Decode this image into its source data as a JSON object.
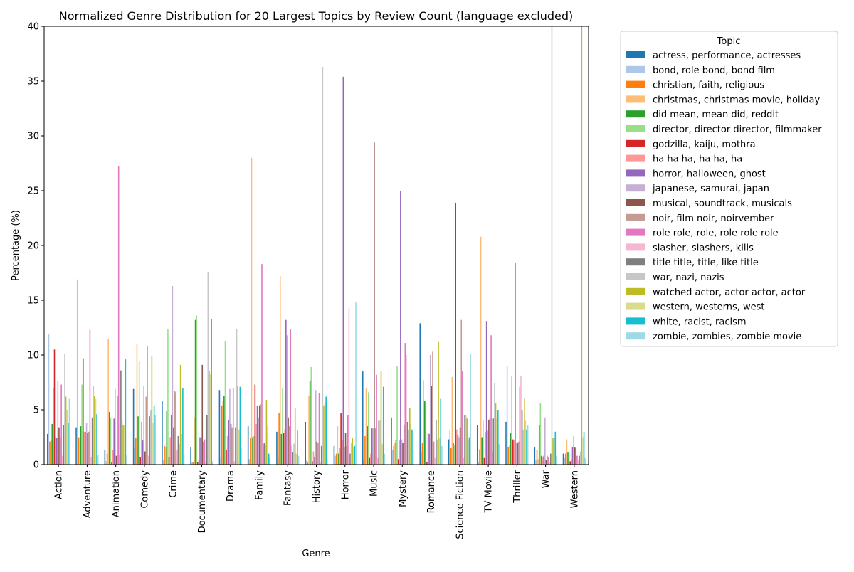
{
  "chart_data": {
    "type": "bar",
    "title": "Normalized Genre Distribution for 20 Largest Topics by Review Count (language excluded)",
    "xlabel": "Genre",
    "ylabel": "Percentage (%)",
    "ylim": [
      0,
      40
    ],
    "yticks": [
      0,
      5,
      10,
      15,
      20,
      25,
      30,
      35,
      40
    ],
    "grid": false,
    "legend": {
      "title": "Topic",
      "placement": "outside-right"
    },
    "categories": [
      "Action",
      "Adventure",
      "Animation",
      "Comedy",
      "Crime",
      "Documentary",
      "Drama",
      "Family",
      "Fantasy",
      "History",
      "Horror",
      "Music",
      "Mystery",
      "Romance",
      "Science Fiction",
      "TV Movie",
      "Thriller",
      "War",
      "Western"
    ],
    "series": [
      {
        "name": "actress, performance, actresses",
        "color": "#1f77b4",
        "values": [
          2.8,
          3.4,
          1.3,
          6.9,
          5.8,
          1.6,
          6.8,
          3.5,
          3.0,
          3.9,
          1.7,
          8.5,
          4.3,
          12.9,
          2.3,
          3.6,
          3.9,
          1.6,
          1.0
        ]
      },
      {
        "name": "bond, role bond, bond film",
        "color": "#aec7e8",
        "values": [
          11.9,
          16.9,
          0.3,
          1.5,
          0.4,
          0.2,
          0.6,
          0.5,
          0.6,
          0.4,
          0.8,
          0.4,
          1.3,
          1.2,
          3.1,
          0.2,
          9.0,
          0.4,
          0.6
        ]
      },
      {
        "name": "christian, faith, religious",
        "color": "#ff7f0e",
        "values": [
          2.1,
          2.5,
          1.0,
          2.4,
          1.7,
          0.2,
          5.4,
          2.4,
          4.7,
          0.2,
          1.0,
          2.6,
          1.7,
          2.0,
          1.5,
          1.4,
          1.6,
          1.3,
          1.0
        ]
      },
      {
        "name": "christmas, christmas movie, holiday",
        "color": "#ffbb78",
        "values": [
          2.2,
          2.5,
          11.5,
          11.0,
          1.6,
          4.3,
          5.8,
          28.0,
          17.2,
          6.3,
          3.5,
          7.0,
          2.0,
          7.7,
          8.0,
          20.8,
          1.8,
          0.5,
          2.3
        ]
      },
      {
        "name": "did mean, mean did, reddit",
        "color": "#2ca02c",
        "values": [
          3.7,
          3.5,
          4.8,
          4.4,
          4.9,
          13.2,
          6.3,
          2.5,
          2.8,
          7.6,
          1.0,
          3.5,
          2.2,
          5.8,
          2.0,
          2.5,
          2.9,
          3.6,
          1.1
        ]
      },
      {
        "name": "director, director director, filmmaker",
        "color": "#98df8a",
        "values": [
          7.0,
          7.3,
          4.3,
          9.4,
          12.4,
          13.6,
          11.3,
          2.6,
          7.0,
          8.9,
          1.5,
          6.6,
          9.0,
          5.7,
          1.8,
          4.0,
          8.1,
          5.6,
          1.0
        ]
      },
      {
        "name": "godzilla, kaiju, mothra",
        "color": "#d62728",
        "values": [
          10.5,
          9.7,
          0.2,
          0.7,
          0.7,
          0.2,
          1.3,
          7.3,
          2.9,
          0.3,
          4.7,
          0.6,
          0.5,
          0.2,
          23.9,
          0.6,
          2.3,
          0.8,
          0.3
        ]
      },
      {
        "name": "ha ha ha, ha ha, ha",
        "color": "#ff9896",
        "values": [
          2.5,
          3.0,
          1.3,
          3.9,
          2.5,
          0.4,
          2.6,
          3.7,
          3.2,
          1.2,
          2.2,
          1.0,
          2.2,
          2.9,
          3.2,
          3.0,
          2.2,
          0.7,
          0.4
        ]
      },
      {
        "name": "horror, halloween, ghost",
        "color": "#9467bd",
        "values": [
          2.4,
          3.0,
          4.2,
          2.2,
          4.5,
          2.5,
          4.1,
          5.4,
          13.2,
          0.7,
          35.4,
          3.3,
          25.0,
          2.8,
          2.7,
          13.1,
          18.4,
          0.8,
          1.6
        ]
      },
      {
        "name": "japanese, samurai, japan",
        "color": "#c5b0d5",
        "values": [
          7.6,
          3.8,
          6.9,
          7.2,
          16.3,
          2.4,
          6.9,
          4.3,
          11.8,
          6.8,
          1.6,
          3.3,
          2.3,
          10.0,
          2.5,
          3.1,
          2.0,
          4.3,
          2.6
        ]
      },
      {
        "name": "musical, soundtrack, musicals",
        "color": "#8c564b",
        "values": [
          3.4,
          2.9,
          0.8,
          1.2,
          3.4,
          9.1,
          3.7,
          5.4,
          4.3,
          2.1,
          2.9,
          29.4,
          2.0,
          7.2,
          3.4,
          4.1,
          2.0,
          0.4,
          1.6
        ]
      },
      {
        "name": "noir, film noir, noirvember",
        "color": "#c49c94",
        "values": [
          2.5,
          3.0,
          6.3,
          6.2,
          6.7,
          2.1,
          3.4,
          5.5,
          3.5,
          2.0,
          1.7,
          3.3,
          3.6,
          10.3,
          13.2,
          4.2,
          2.1,
          0.8,
          1.5
        ]
      },
      {
        "name": "role role, role, role role role",
        "color": "#e377c2",
        "values": [
          7.3,
          12.3,
          27.2,
          10.8,
          6.6,
          2.3,
          7.0,
          18.3,
          12.4,
          6.5,
          4.5,
          8.2,
          11.1,
          2.1,
          8.5,
          11.8,
          7.1,
          0.7,
          0.8
        ]
      },
      {
        "name": "slasher, slashers, kills",
        "color": "#f7b6d2",
        "values": [
          0.8,
          0.7,
          0.9,
          0.8,
          1.3,
          0.2,
          0.3,
          1.8,
          1.8,
          0.2,
          14.3,
          0.6,
          10.0,
          0.6,
          0.6,
          1.2,
          8.1,
          0.2,
          0.4
        ]
      },
      {
        "name": "title title, title, like title",
        "color": "#7f7f7f",
        "values": [
          3.6,
          4.3,
          8.6,
          4.4,
          2.6,
          4.5,
          3.4,
          2.0,
          1.1,
          1.7,
          1.0,
          4.0,
          3.9,
          4.1,
          4.5,
          4.2,
          5.0,
          1.0,
          0.8
        ]
      },
      {
        "name": "war, nazi, nazis",
        "color": "#c7c7c7",
        "values": [
          10.1,
          7.2,
          4.1,
          5.0,
          1.9,
          17.6,
          12.4,
          1.8,
          1.9,
          36.3,
          2.0,
          4.0,
          3.2,
          2.3,
          4.5,
          7.4,
          3.2,
          40.0,
          1.2
        ]
      },
      {
        "name": "watched actor, actor actor, actor",
        "color": "#bcbd22",
        "values": [
          6.2,
          6.3,
          3.6,
          9.9,
          9.1,
          8.5,
          7.2,
          5.9,
          5.2,
          5.4,
          2.4,
          8.5,
          5.2,
          11.2,
          4.2,
          5.6,
          6.0,
          2.4,
          40.0
        ]
      },
      {
        "name": "western, westerns, west",
        "color": "#dbdb8d",
        "values": [
          5.0,
          6.0,
          3.6,
          3.8,
          2.8,
          8.3,
          3.2,
          3.5,
          1.0,
          5.6,
          1.6,
          1.9,
          3.7,
          2.4,
          2.2,
          4.3,
          4.0,
          2.4,
          2.5
        ]
      },
      {
        "name": "white, racist, racism",
        "color": "#17becf",
        "values": [
          3.8,
          4.6,
          9.6,
          5.4,
          7.0,
          13.3,
          7.1,
          1.0,
          3.1,
          6.2,
          1.7,
          7.1,
          3.2,
          6.0,
          2.5,
          5.0,
          3.2,
          3.0,
          3.0
        ]
      },
      {
        "name": "zombie, zombies, zombie movie",
        "color": "#9edae5",
        "values": [
          6.0,
          0.9,
          0.9,
          4.5,
          1.0,
          0.3,
          1.5,
          0.6,
          0.8,
          0.5,
          14.8,
          1.0,
          1.3,
          1.7,
          10.1,
          1.9,
          3.6,
          0.8,
          0.6
        ]
      }
    ]
  }
}
